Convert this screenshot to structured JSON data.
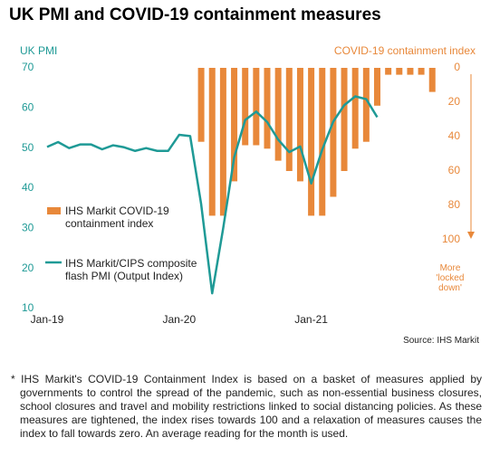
{
  "chart_data": {
    "type": "bar+line",
    "title": "UK PMI and COVID-19 containment measures",
    "ylabel": "UK PMI",
    "y2label": "COVID-19 containment index",
    "annotation": "More 'locked down'",
    "source": "Source: IHS Markit",
    "categories": [
      "Jan-19",
      null,
      null,
      null,
      null,
      null,
      null,
      null,
      null,
      null,
      null,
      null,
      "Jan-20",
      null,
      null,
      null,
      null,
      null,
      null,
      null,
      null,
      null,
      null,
      null,
      "Jan-21",
      null,
      null,
      null,
      null,
      null,
      null,
      null,
      null,
      null,
      null,
      null
    ],
    "series": [
      {
        "name": "IHS Markit COVID-19 containment index",
        "type": "bar",
        "axis": "y2",
        "color": "#e8883a",
        "values": [
          null,
          null,
          null,
          null,
          null,
          null,
          null,
          null,
          null,
          null,
          null,
          null,
          null,
          null,
          43,
          86,
          86,
          66,
          45,
          45,
          47,
          54,
          60,
          66,
          86,
          86,
          75,
          60,
          47,
          43,
          22,
          4,
          4,
          4,
          4,
          14
        ]
      },
      {
        "name": "IHS Markit/CIPS composite flash PMI (Output Index)",
        "type": "line",
        "axis": "y",
        "color": "#1f9a96",
        "values": [
          50.3,
          51.5,
          50.0,
          50.9,
          50.9,
          49.7,
          50.7,
          50.2,
          49.3,
          50.0,
          49.3,
          49.3,
          53.3,
          53.0,
          36.0,
          13.8,
          30.0,
          47.7,
          57.0,
          59.1,
          56.5,
          52.1,
          49.0,
          50.4,
          41.2,
          49.6,
          56.6,
          60.7,
          62.9,
          62.2,
          57.7,
          null,
          null,
          null,
          null,
          null
        ]
      }
    ],
    "ylim": [
      10,
      70
    ],
    "yticks": [
      10,
      20,
      30,
      40,
      50,
      60,
      70
    ],
    "y2lim": [
      0,
      100
    ],
    "y2ticks": [
      0,
      20,
      40,
      60,
      80,
      100
    ],
    "y2inverted": true
  },
  "footnote": "* IHS Markit's COVID-19 Containment Index is based on a basket of measures applied by governments to control the spread of the pandemic, such as non-essential business closures, school closures and travel and mobility restrictions linked to social distancing policies. As these measures are tightened, the index rises towards 100 and a relaxation of measures causes the index to fall towards zero. An average reading for the month is used."
}
